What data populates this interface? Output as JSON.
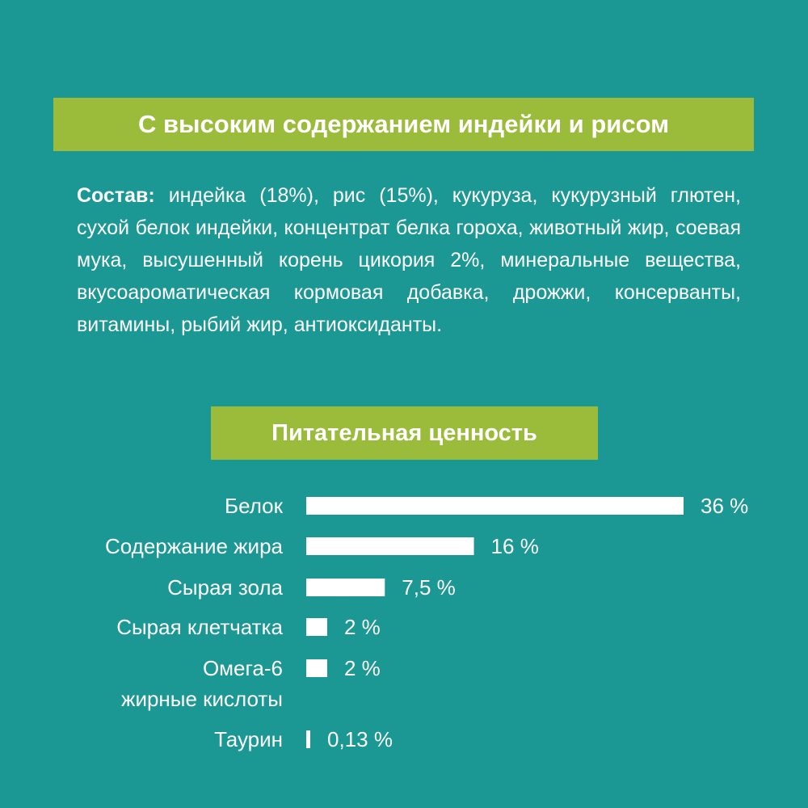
{
  "colors": {
    "background": "#1b9794",
    "banner": "#9bbb3a",
    "text": "#ffffff",
    "bar": "#ffffff"
  },
  "header": {
    "title": "С высоким содержанием индейки и рисом"
  },
  "composition": {
    "lead": "Состав:",
    "text": " индейка (18%), рис (15%), кукуруза, кукурузный глютен, сухой белок индейки, концентрат белка гороха, животный жир, соевая мука, высушенный корень цикория 2%, минеральные вещества, вкусоароматическая кормовая добавка, дрожжи, консерванты, витамины, рыбий жир, антиоксиданты."
  },
  "nutrition": {
    "title": "Питательная ценность"
  },
  "chart_data": {
    "type": "bar",
    "orientation": "horizontal",
    "categories": [
      [
        "Белок"
      ],
      [
        "Содержание жира"
      ],
      [
        "Сырая зола"
      ],
      [
        "Сырая клетчатка"
      ],
      [
        "Омега-6",
        "жирные кислоты"
      ],
      [
        "Таурин"
      ]
    ],
    "values": [
      36,
      16,
      7.5,
      2,
      2,
      0.13
    ],
    "value_labels": [
      "36 %",
      "16 %",
      "7,5 %",
      "2 %",
      "2 %",
      "0,13 %"
    ],
    "xlim": [
      0,
      36
    ]
  }
}
